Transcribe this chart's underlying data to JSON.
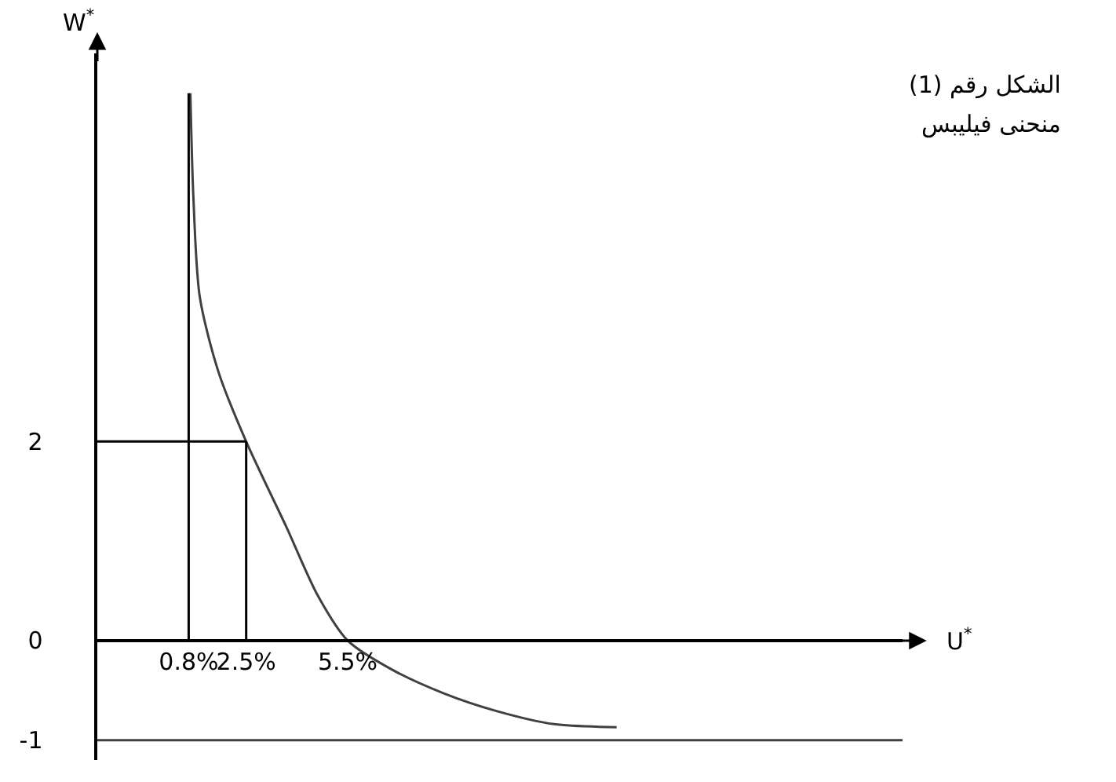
{
  "chart_data": {
    "type": "line",
    "title": "الشكل رقم (1)",
    "subtitle": "منحنى فيليبس",
    "xlabel": "U$^{*}$",
    "ylabel": "W$^{*}$",
    "xlim": [
      -1.9,
      21.9
    ],
    "ylim": [
      -1.2,
      5.9
    ],
    "xticks": [
      {
        "value": 0.8,
        "label": "0.8%"
      },
      {
        "value": 2.5,
        "label": "2.5%"
      },
      {
        "value": 5.5,
        "label": "5.5%"
      }
    ],
    "yticks": [
      -1,
      0,
      2
    ],
    "series": [
      {
        "color": "#404040",
        "x": [
          0.85,
          0.94,
          1.13,
          1.69,
          2.5,
          3.69,
          4.62,
          5.5,
          6.8,
          8.34,
          9.92,
          11.6,
          13.45
        ],
        "values": [
          5.5,
          4.45,
          3.45,
          2.69,
          2,
          1.14,
          0.45,
          0,
          -0.29,
          -0.53,
          -0.71,
          -0.84,
          -0.87
        ]
      },
      {
        "color": "#000000",
        "x": [
          0.8,
          0.8
        ],
        "values": [
          0,
          5.5
        ]
      },
      {
        "color": "#000000",
        "x": [
          2.5,
          2.5
        ],
        "values": [
          0,
          2
        ]
      },
      {
        "color": "#000000",
        "x": [
          -1.9,
          2.5
        ],
        "values": [
          2,
          2
        ]
      }
    ],
    "ref_lines": [
      {
        "axis": "y",
        "value": -1,
        "color": "#404040"
      }
    ],
    "marker": "none",
    "line_style": "solid",
    "grid": false
  }
}
